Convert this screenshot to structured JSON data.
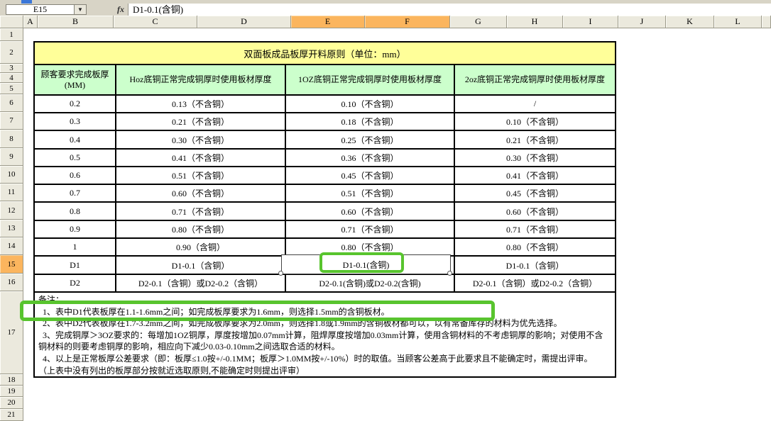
{
  "formula_bar": {
    "name_box_value": "E15",
    "dropdown_glyph": "▼",
    "fx_label": "fx",
    "formula_value": "D1-0.1(含铜)"
  },
  "column_headers": {
    "labels": [
      "A",
      "B",
      "C",
      "D",
      "E",
      "F",
      "G",
      "H",
      "I",
      "J",
      "K",
      "L",
      ""
    ],
    "selected": [
      "E",
      "F"
    ]
  },
  "row_headers": {
    "labels": [
      "1",
      "2",
      "3",
      "4",
      "5",
      "6",
      "7",
      "8",
      "9",
      "10",
      "11",
      "12",
      "13",
      "14",
      "15",
      "16",
      "17",
      "18",
      "19",
      "20",
      "21"
    ],
    "selected": [
      "15"
    ]
  },
  "sheet_table": {
    "title": "双面板成品板厚开料原则（单位：mm）",
    "column_titles": [
      "顾客要求完成板厚\n(MM)",
      "Hoz底铜正常完成铜厚时使用板材厚度",
      "1OZ底铜正常完成铜厚时使用板材厚度",
      "2oz底铜正常完成铜厚时使用板材厚度"
    ],
    "rows": [
      [
        "0.2",
        "0.13（不含铜）",
        "0.10（不含铜）",
        "/"
      ],
      [
        "0.3",
        "0.21（不含铜）",
        "0.18（不含铜）",
        "0.10（不含铜）"
      ],
      [
        "0.4",
        "0.30（不含铜）",
        "0.25（不含铜）",
        "0.21（不含铜）"
      ],
      [
        "0.5",
        "0.41（不含铜）",
        "0.36（不含铜）",
        "0.30（不含铜）"
      ],
      [
        "0.6",
        "0.51（不含铜）",
        "0.45（不含铜）",
        "0.41（不含铜）"
      ],
      [
        "0.7",
        "0.60（不含铜）",
        "0.51（不含铜）",
        "0.45（不含铜）"
      ],
      [
        "0.8",
        "0.71（不含铜）",
        "0.60（不含铜）",
        "0.60（不含铜）"
      ],
      [
        "0.9",
        "0.80（不含铜）",
        "0.71（不含铜）",
        "0.71（不含铜）"
      ],
      [
        "1",
        "0.90（含铜）",
        "0.80（不含铜）",
        "0.80（不含铜）"
      ],
      [
        "D1",
        "D1-0.1（含铜）",
        "D1-0.1(含铜)",
        "D1-0.1（含铜）"
      ],
      [
        "D2",
        "D2-0.1（含铜）或D2-0.2（含铜）",
        "D2-0.1(含铜)或D2-0.2(含铜)",
        "D2-0.1（含铜）或D2-0.2（含铜）"
      ]
    ],
    "selected_cell": {
      "cell_ref": "E15",
      "value": "D1-0.1(含铜)"
    },
    "notes": [
      "备注：",
      "  1、表中D1代表板厚在1.1-1.6mm之间；如完成板厚要求为1.6mm，则选择1.5mm的含铜板材。",
      "  2、表中D2代表板厚在1.7-3.2mm之间，如完成板厚要求为2.0mm，则选择1.8或1.9mm的含铜板材都可以，以有常备库存的材料为优先选择。",
      "  3、完成铜厚＞3OZ要求的：每增加1OZ铜厚，厚度按增加0.07mm计算，阻焊厚度按增加0.03mm计算，使用含铜材料的不考虑铜厚的影响；对使用不含",
      "铜材料的则要考虑铜厚的影响，相应向下减少0.03-0.10mm之间选取合适的材料。",
      "  4、以上是正常板厚公差要求（即：板厚≤1.0按+/-0.1MM；板厚＞1.0MM按+/-10%）时的取值。当顾客公差高于此要求且不能确定时，需提出评审。",
      "（上表中没有列出的板厚部分按就近选取原则,不能确定时则提出评审）"
    ]
  },
  "colors": {
    "header_selection_orange": "#FBB55E",
    "table_title_yellow": "#FFFF99",
    "table_header_green": "#CCFFCC",
    "annotation_green": "#58C42E"
  }
}
